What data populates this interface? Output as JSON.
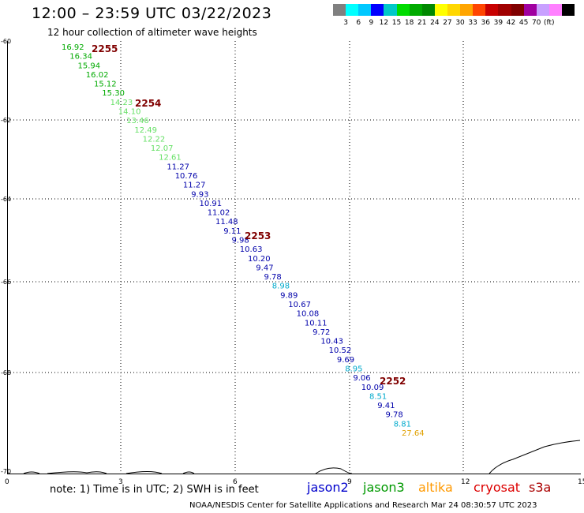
{
  "title": "12:00 – 23:59 UTC 03/22/2023",
  "subtitle": "12 hour collection of altimeter wave heights",
  "colorbar": {
    "swatches": [
      "#808080",
      "#00ffff",
      "#00c8ff",
      "#0000ff",
      "#00c8c8",
      "#00dc00",
      "#00aa00",
      "#008800",
      "#ffff00",
      "#ffd700",
      "#ffa500",
      "#ff4500",
      "#c80000",
      "#a00000",
      "#800000",
      "#a000a0",
      "#c8a0ff",
      "#ff80ff",
      "#000000"
    ],
    "labels": [
      "3",
      "6",
      "9",
      "12",
      "15",
      "18",
      "21",
      "24",
      "27",
      "30",
      "33",
      "36",
      "39",
      "42",
      "45",
      "70",
      "(ft)"
    ]
  },
  "axes": {
    "y_labels": [
      "-60",
      "-62",
      "-64",
      "-66",
      "-68",
      "-70"
    ],
    "x_labels": [
      "0",
      "3",
      "6",
      "9",
      "12",
      "15"
    ]
  },
  "passes": [
    {
      "label": "2255",
      "color": "#800000"
    },
    {
      "label": "2254",
      "color": "#800000"
    },
    {
      "label": "2253",
      "color": "#800000"
    },
    {
      "label": "2252",
      "color": "#800000"
    }
  ],
  "readings": [
    {
      "value": "16.92",
      "color": "#00aa00"
    },
    {
      "value": "16.34",
      "color": "#00aa00"
    },
    {
      "value": "15.94",
      "color": "#00aa00"
    },
    {
      "value": "16.02",
      "color": "#00aa00"
    },
    {
      "value": "15.12",
      "color": "#00aa00"
    },
    {
      "value": "15.30",
      "color": "#00aa00"
    },
    {
      "value": "14.23",
      "color": "#66e066"
    },
    {
      "value": "14.10",
      "color": "#66e066"
    },
    {
      "value": "13.46",
      "color": "#66e066"
    },
    {
      "value": "12.49",
      "color": "#66e066"
    },
    {
      "value": "12.22",
      "color": "#66e066"
    },
    {
      "value": "12.07",
      "color": "#66e066"
    },
    {
      "value": "12.61",
      "color": "#66e066"
    },
    {
      "value": "11.27",
      "color": "#0000aa"
    },
    {
      "value": "10.76",
      "color": "#0000aa"
    },
    {
      "value": "11.27",
      "color": "#0000aa"
    },
    {
      "value": "9.93",
      "color": "#0000aa"
    },
    {
      "value": "10.91",
      "color": "#0000aa"
    },
    {
      "value": "11.02",
      "color": "#0000aa"
    },
    {
      "value": "11.48",
      "color": "#0000aa"
    },
    {
      "value": "9.11",
      "color": "#0000aa"
    },
    {
      "value": "9.98",
      "color": "#0000aa"
    },
    {
      "value": "10.63",
      "color": "#0000aa"
    },
    {
      "value": "10.20",
      "color": "#0000aa"
    },
    {
      "value": "9.47",
      "color": "#0000aa"
    },
    {
      "value": "9.78",
      "color": "#0000aa"
    },
    {
      "value": "8.98",
      "color": "#00aacc"
    },
    {
      "value": "9.89",
      "color": "#0000aa"
    },
    {
      "value": "10.67",
      "color": "#0000aa"
    },
    {
      "value": "10.08",
      "color": "#0000aa"
    },
    {
      "value": "10.11",
      "color": "#0000aa"
    },
    {
      "value": "9.72",
      "color": "#0000aa"
    },
    {
      "value": "10.43",
      "color": "#0000aa"
    },
    {
      "value": "10.52",
      "color": "#0000aa"
    },
    {
      "value": "9.69",
      "color": "#0000aa"
    },
    {
      "value": "8.95",
      "color": "#00aacc"
    },
    {
      "value": "9.06",
      "color": "#0000aa"
    },
    {
      "value": "10.09",
      "color": "#0000aa"
    },
    {
      "value": "8.51",
      "color": "#00aacc"
    },
    {
      "value": "9.41",
      "color": "#0000aa"
    },
    {
      "value": "9.78",
      "color": "#0000aa"
    },
    {
      "value": "8.81",
      "color": "#00aacc"
    },
    {
      "value": "27.64",
      "color": "#e0a000"
    }
  ],
  "footer": {
    "note": "note: 1) Time is in UTC; 2) SWH is in feet",
    "credit": "NOAA/NESDIS Center for Satellite Applications and Research     Mar 24 08:30:57 UTC 2023",
    "satellites": [
      {
        "name": "jason2",
        "color": "#0000cc"
      },
      {
        "name": "jason3",
        "color": "#009900"
      },
      {
        "name": "altika",
        "color": "#ff9900"
      },
      {
        "name": "cryosat",
        "color": "#dd0000"
      },
      {
        "name": "s3a",
        "color": "#aa0000"
      }
    ]
  }
}
